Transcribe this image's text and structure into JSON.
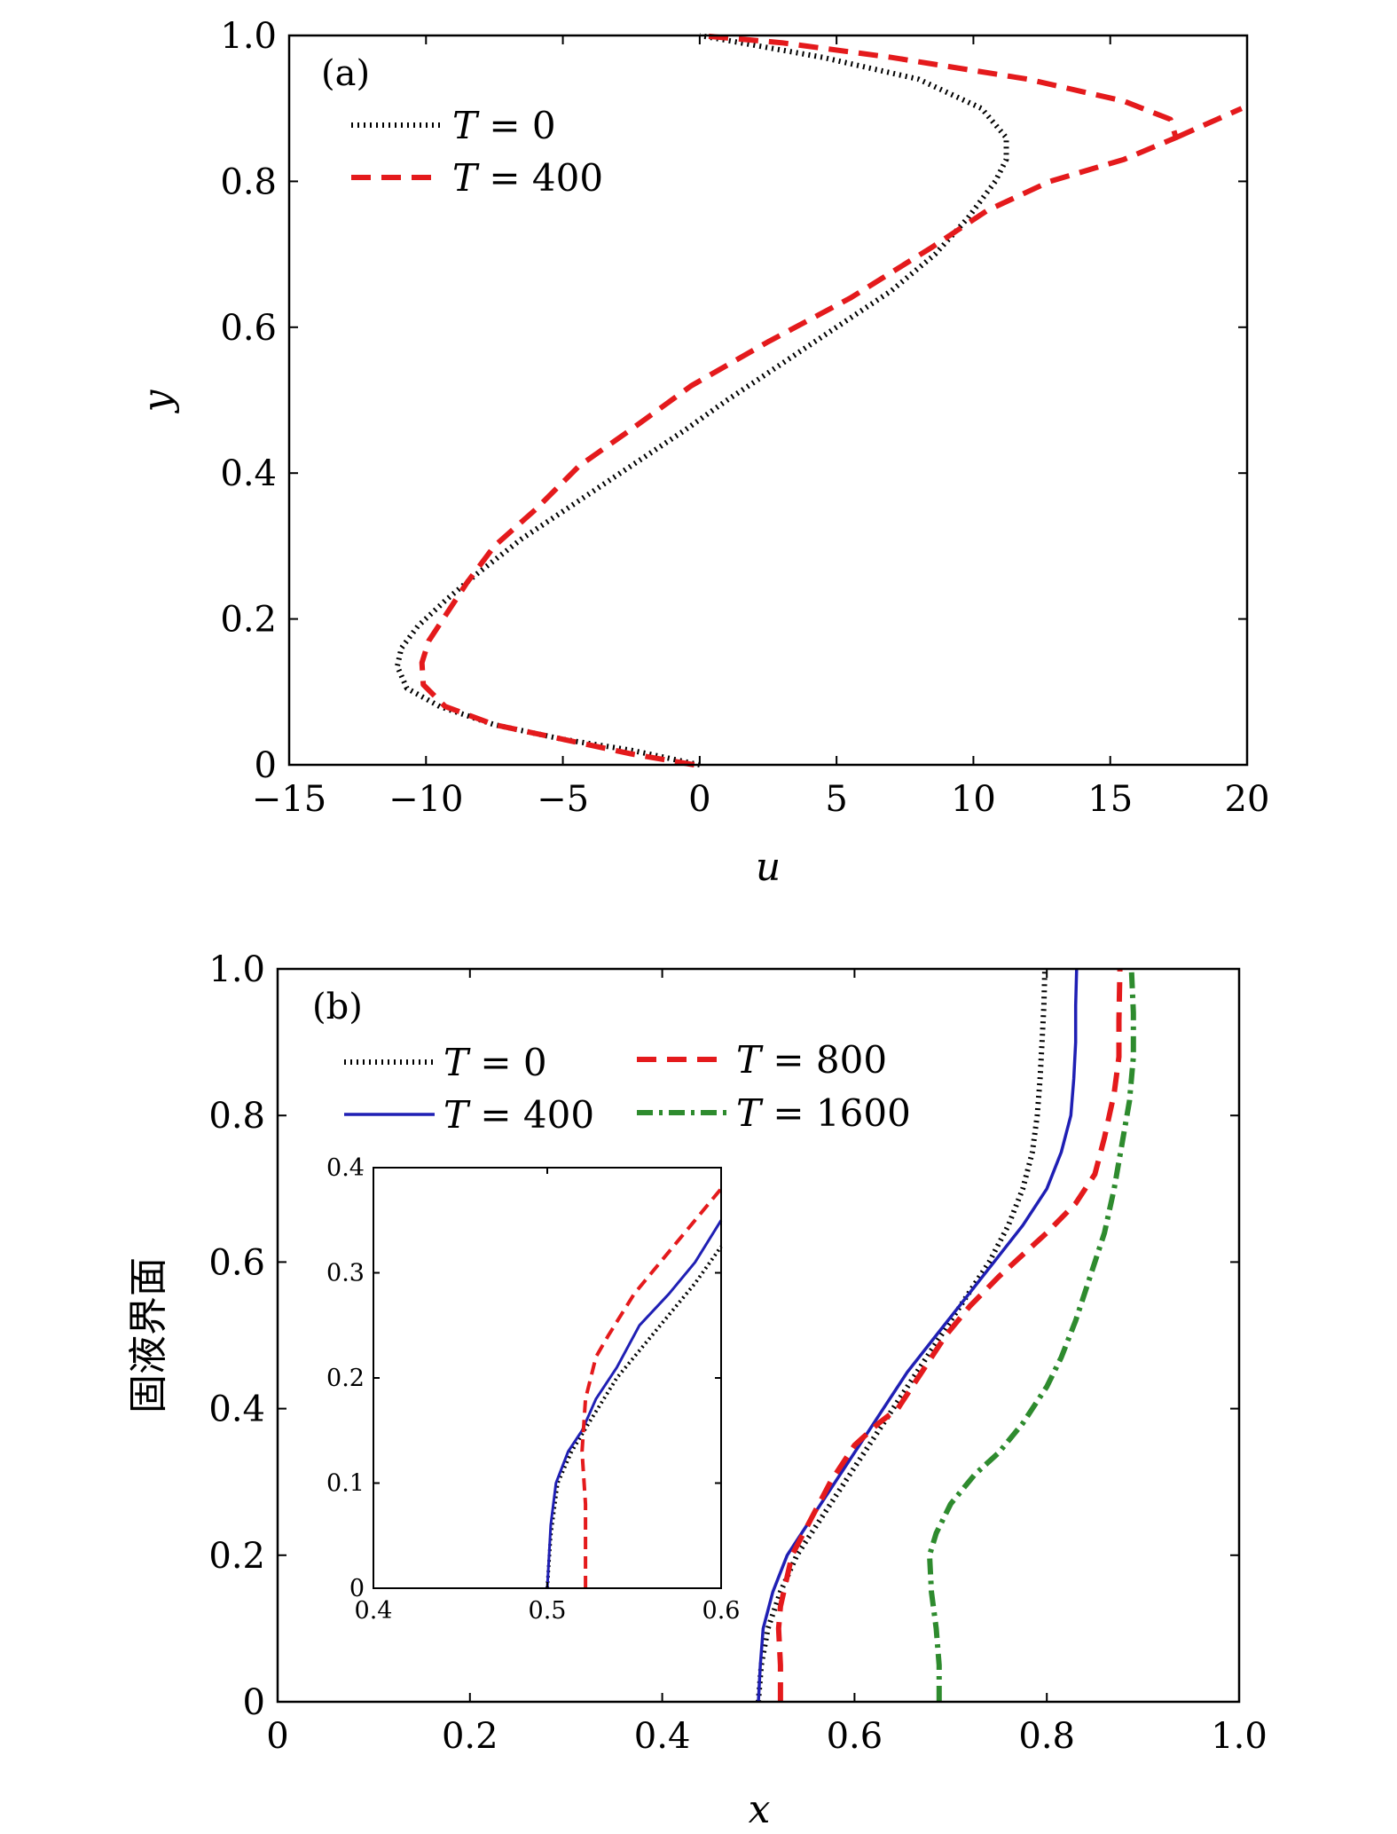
{
  "chart_data": [
    {
      "type": "line",
      "panel_label": "(a)",
      "xlabel": "u",
      "ylabel": "y",
      "xlim": [
        -15,
        20
      ],
      "ylim": [
        0,
        1
      ],
      "xticks": [
        -15,
        -10,
        -5,
        0,
        5,
        10,
        15,
        20
      ],
      "xtick_labels": [
        "−15",
        "−10",
        "−5",
        "0",
        "5",
        "10",
        "15",
        "20"
      ],
      "yticks": [
        0,
        0.2,
        0.4,
        0.6,
        0.8,
        1.0
      ],
      "ytick_labels": [
        "0",
        "0.2",
        "0.4",
        "0.6",
        "0.8",
        "1.0"
      ],
      "grid": false,
      "legend_position": "upper-left",
      "series": [
        {
          "name": "T = 0",
          "legend_var": "T",
          "legend_rest": " = 0",
          "style": "dotted",
          "color": "#000000",
          "points": [
            [
              0,
              0
            ],
            [
              -2.5,
              0.02
            ],
            [
              -5.0,
              0.035
            ],
            [
              -7.5,
              0.055
            ],
            [
              -9.5,
              0.08
            ],
            [
              -10.7,
              0.105
            ],
            [
              -11.05,
              0.135
            ],
            [
              -10.9,
              0.16
            ],
            [
              -10.3,
              0.19
            ],
            [
              -9.3,
              0.225
            ],
            [
              -8.2,
              0.26
            ],
            [
              -6.5,
              0.31
            ],
            [
              -4.5,
              0.36
            ],
            [
              -2.5,
              0.41
            ],
            [
              -0.5,
              0.46
            ],
            [
              1.0,
              0.5
            ],
            [
              3.0,
              0.55
            ],
            [
              5.0,
              0.6
            ],
            [
              7.0,
              0.65
            ],
            [
              8.6,
              0.7
            ],
            [
              9.8,
              0.75
            ],
            [
              10.8,
              0.8
            ],
            [
              11.2,
              0.83
            ],
            [
              11.2,
              0.86
            ],
            [
              10.3,
              0.9
            ],
            [
              8.0,
              0.94
            ],
            [
              4.5,
              0.97
            ],
            [
              1.5,
              0.99
            ],
            [
              0,
              1.0
            ]
          ]
        },
        {
          "name": "T = 400",
          "legend_var": "T",
          "legend_rest": " = 400",
          "style": "dashed",
          "color": "#e41a1c",
          "points": [
            [
              -0.2,
              0
            ],
            [
              -2.5,
              0.015
            ],
            [
              -5.0,
              0.035
            ],
            [
              -7.5,
              0.055
            ],
            [
              -9.3,
              0.08
            ],
            [
              -10.1,
              0.11
            ],
            [
              -10.15,
              0.14
            ],
            [
              -9.9,
              0.17
            ],
            [
              -9.2,
              0.21
            ],
            [
              -8.5,
              0.25
            ],
            [
              -7.5,
              0.3
            ],
            [
              -6.0,
              0.35
            ],
            [
              -4.4,
              0.41
            ],
            [
              -2.5,
              0.46
            ],
            [
              -0.3,
              0.52
            ],
            [
              2.5,
              0.58
            ],
            [
              5.5,
              0.64
            ],
            [
              8.5,
              0.71
            ],
            [
              10.5,
              0.76
            ],
            [
              12.8,
              0.8
            ],
            [
              15.5,
              0.83
            ],
            [
              17.4,
              0.86
            ],
            [
              17.2,
              0.885
            ],
            [
              15.5,
              0.91
            ],
            [
              12.0,
              0.94
            ],
            [
              7.0,
              0.97
            ],
            [
              3.0,
              0.99
            ],
            [
              0,
              1.0
            ]
          ]
        },
        {
          "name": "",
          "style": "dashed",
          "color": "#e41a1c",
          "points": [
            [
              17.4,
              0.86
            ],
            [
              19.8,
              0.9
            ]
          ]
        }
      ]
    },
    {
      "type": "line",
      "panel_label": "(b)",
      "xlabel": "x",
      "ylabel": "固液界面",
      "xlim": [
        0,
        1
      ],
      "ylim": [
        0,
        1
      ],
      "xticks": [
        0,
        0.2,
        0.4,
        0.6,
        0.8,
        1.0
      ],
      "xtick_labels": [
        "0",
        "0.2",
        "0.4",
        "0.6",
        "0.8",
        "1.0"
      ],
      "yticks": [
        0,
        0.2,
        0.4,
        0.6,
        0.8,
        1.0
      ],
      "ytick_labels": [
        "0",
        "0.2",
        "0.4",
        "0.6",
        "0.8",
        "1.0"
      ],
      "grid": false,
      "legend_position": "upper-left",
      "series": [
        {
          "name": "T = 0",
          "legend_var": "T",
          "legend_rest": " = 0",
          "style": "dotted",
          "color": "#000000",
          "points": [
            [
              0.5,
              0
            ],
            [
              0.503,
              0.05
            ],
            [
              0.51,
              0.1
            ],
            [
              0.523,
              0.15
            ],
            [
              0.54,
              0.2
            ],
            [
              0.565,
              0.25
            ],
            [
              0.59,
              0.3
            ],
            [
              0.615,
              0.35
            ],
            [
              0.64,
              0.4
            ],
            [
              0.665,
              0.45
            ],
            [
              0.69,
              0.5
            ],
            [
              0.715,
              0.55
            ],
            [
              0.74,
              0.6
            ],
            [
              0.76,
              0.65
            ],
            [
              0.775,
              0.7
            ],
            [
              0.785,
              0.75
            ],
            [
              0.79,
              0.8
            ],
            [
              0.793,
              0.85
            ],
            [
              0.795,
              0.9
            ],
            [
              0.797,
              0.95
            ],
            [
              0.798,
              1.0
            ]
          ]
        },
        {
          "name": "T = 400",
          "legend_var": "T",
          "legend_rest": " = 400",
          "style": "solid",
          "color": "#1f1fb4",
          "points": [
            [
              0.5,
              0
            ],
            [
              0.502,
              0.05
            ],
            [
              0.505,
              0.1
            ],
            [
              0.515,
              0.15
            ],
            [
              0.53,
              0.2
            ],
            [
              0.555,
              0.25
            ],
            [
              0.58,
              0.3
            ],
            [
              0.605,
              0.35
            ],
            [
              0.63,
              0.4
            ],
            [
              0.655,
              0.45
            ],
            [
              0.685,
              0.5
            ],
            [
              0.715,
              0.55
            ],
            [
              0.745,
              0.6
            ],
            [
              0.775,
              0.65
            ],
            [
              0.8,
              0.7
            ],
            [
              0.815,
              0.75
            ],
            [
              0.825,
              0.8
            ],
            [
              0.828,
              0.85
            ],
            [
              0.83,
              0.9
            ],
            [
              0.83,
              0.95
            ],
            [
              0.831,
              1.0
            ]
          ]
        },
        {
          "name": "T = 800",
          "legend_var": "T",
          "legend_rest": " = 800",
          "style": "dashed",
          "color": "#e41a1c",
          "points": [
            [
              0.523,
              0
            ],
            [
              0.523,
              0.05
            ],
            [
              0.521,
              0.1
            ],
            [
              0.523,
              0.13
            ],
            [
              0.535,
              0.2
            ],
            [
              0.555,
              0.25
            ],
            [
              0.575,
              0.3
            ],
            [
              0.6,
              0.35
            ],
            [
              0.625,
              0.38
            ],
            [
              0.645,
              0.4
            ],
            [
              0.67,
              0.45
            ],
            [
              0.695,
              0.5
            ],
            [
              0.72,
              0.54
            ],
            [
              0.75,
              0.58
            ],
            [
              0.775,
              0.61
            ],
            [
              0.8,
              0.64
            ],
            [
              0.83,
              0.68
            ],
            [
              0.85,
              0.72
            ],
            [
              0.86,
              0.77
            ],
            [
              0.87,
              0.83
            ],
            [
              0.875,
              0.88
            ],
            [
              0.875,
              0.93
            ],
            [
              0.876,
              1.0
            ]
          ]
        },
        {
          "name": "T = 1600",
          "legend_var": "T",
          "legend_rest": " = 1600",
          "style": "dashdot",
          "color": "#2e8b2e",
          "points": [
            [
              0.688,
              0
            ],
            [
              0.688,
              0.05
            ],
            [
              0.685,
              0.1
            ],
            [
              0.68,
              0.15
            ],
            [
              0.678,
              0.2
            ],
            [
              0.685,
              0.23
            ],
            [
              0.7,
              0.27
            ],
            [
              0.725,
              0.31
            ],
            [
              0.75,
              0.34
            ],
            [
              0.775,
              0.38
            ],
            [
              0.8,
              0.43
            ],
            [
              0.815,
              0.47
            ],
            [
              0.83,
              0.52
            ],
            [
              0.845,
              0.58
            ],
            [
              0.86,
              0.64
            ],
            [
              0.87,
              0.7
            ],
            [
              0.878,
              0.76
            ],
            [
              0.886,
              0.82
            ],
            [
              0.89,
              0.88
            ],
            [
              0.89,
              0.94
            ],
            [
              0.888,
              1.0
            ]
          ]
        }
      ],
      "inset": {
        "xlim": [
          0.4,
          0.6
        ],
        "ylim": [
          0,
          0.4
        ],
        "xticks": [
          0.4,
          0.5,
          0.6
        ],
        "xtick_labels": [
          "0.4",
          "0.5",
          "0.6"
        ],
        "yticks": [
          0,
          0.1,
          0.2,
          0.3,
          0.4
        ],
        "ytick_labels": [
          "0",
          "0.1",
          "0.2",
          "0.3",
          "0.4"
        ],
        "series": [
          {
            "style": "dotted",
            "color": "#000000",
            "points": [
              [
                0.5,
                0
              ],
              [
                0.502,
                0.05
              ],
              [
                0.506,
                0.1
              ],
              [
                0.514,
                0.13
              ],
              [
                0.525,
                0.16
              ],
              [
                0.54,
                0.2
              ],
              [
                0.555,
                0.23
              ],
              [
                0.57,
                0.26
              ],
              [
                0.585,
                0.29
              ],
              [
                0.6,
                0.325
              ]
            ]
          },
          {
            "style": "solid",
            "color": "#1f1fb4",
            "points": [
              [
                0.5,
                0
              ],
              [
                0.502,
                0.06
              ],
              [
                0.505,
                0.1
              ],
              [
                0.512,
                0.13
              ],
              [
                0.52,
                0.15
              ],
              [
                0.528,
                0.18
              ],
              [
                0.54,
                0.21
              ],
              [
                0.553,
                0.25
              ],
              [
                0.57,
                0.28
              ],
              [
                0.585,
                0.31
              ],
              [
                0.6,
                0.35
              ]
            ]
          },
          {
            "style": "dashed",
            "color": "#e41a1c",
            "points": [
              [
                0.522,
                0
              ],
              [
                0.522,
                0.08
              ],
              [
                0.52,
                0.13
              ],
              [
                0.522,
                0.18
              ],
              [
                0.528,
                0.22
              ],
              [
                0.535,
                0.24
              ],
              [
                0.55,
                0.28
              ],
              [
                0.57,
                0.32
              ],
              [
                0.585,
                0.35
              ],
              [
                0.6,
                0.38
              ]
            ]
          }
        ]
      }
    }
  ]
}
